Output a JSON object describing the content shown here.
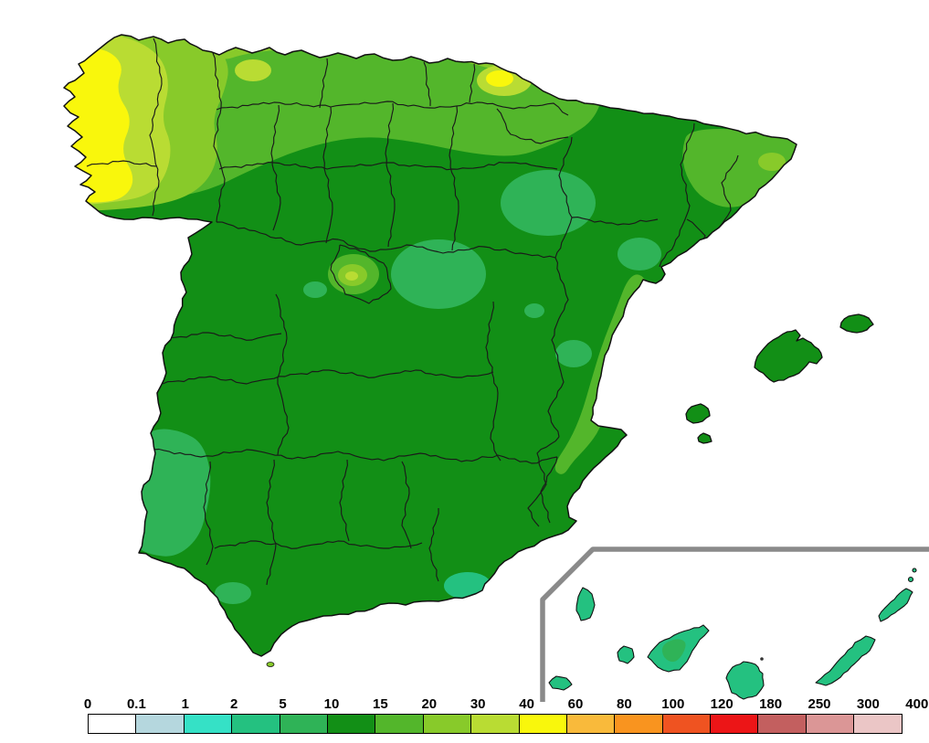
{
  "legend": {
    "ticks": [
      "0",
      "0.1",
      "1",
      "2",
      "5",
      "10",
      "15",
      "20",
      "30",
      "40",
      "60",
      "80",
      "100",
      "120",
      "180",
      "250",
      "300",
      "400"
    ],
    "colors": [
      "#FFFFFF",
      "#B5D7DE",
      "#35E1C6",
      "#24C180",
      "#2FB357",
      "#128F16",
      "#53B62B",
      "#88CA2A",
      "#B9DC33",
      "#F9F70C",
      "#F9BA3B",
      "#F9941F",
      "#EF5321",
      "#EC1517",
      "#C35F5F",
      "#DB9696",
      "#EBC6C6"
    ]
  },
  "map": {
    "inset_border_color": "#8A8A8A",
    "coast_color": "#111111",
    "province_border_color": "#1A1A1A",
    "sea_color": "#FFFFFF"
  }
}
